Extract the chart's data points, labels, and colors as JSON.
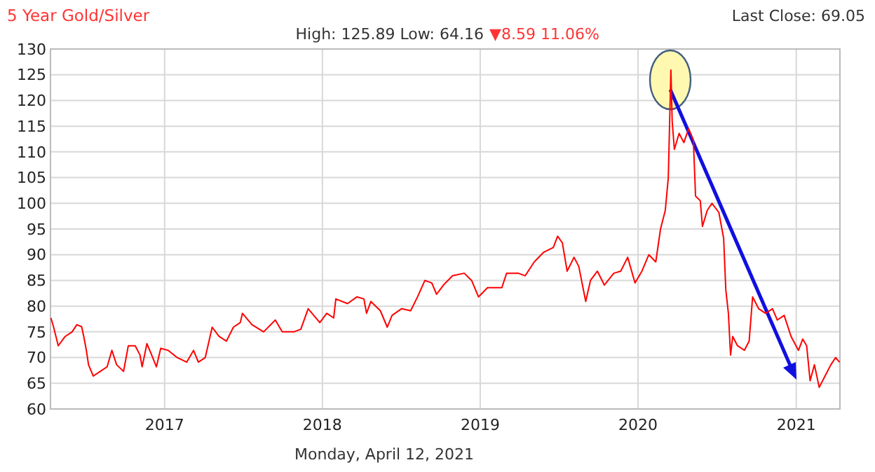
{
  "chart_data": {
    "type": "line",
    "title": "5 Year Gold/Silver",
    "subtitle": "High: 125.89 Low: 64.16",
    "annotations": [
      "▼8.59 11.06%",
      "Last Close: 69.05",
      "Monday, April 12, 2021"
    ],
    "xlim": [
      "2016-04-12",
      "2021-04-12"
    ],
    "xticks": [
      "2017",
      "2018",
      "2019",
      "2020",
      "2021"
    ],
    "ylim": [
      60,
      130
    ],
    "yticks": [
      60,
      65,
      70,
      75,
      80,
      85,
      90,
      95,
      100,
      105,
      110,
      115,
      120,
      125,
      130
    ],
    "grid": true,
    "marker": "none",
    "line_style": "solid",
    "series": [
      {
        "color": "#ff0000",
        "x": [
          "2016-04-13",
          "2016-04-19",
          "2016-04-30",
          "2016-05-16",
          "2016-06-01",
          "2016-06-12",
          "2016-06-23",
          "2016-06-28",
          "2016-07-04",
          "2016-07-09",
          "2016-07-20",
          "2016-08-05",
          "2016-08-21",
          "2016-09-01",
          "2016-09-12",
          "2016-09-28",
          "2016-10-09",
          "2016-10-25",
          "2016-11-05",
          "2016-11-10",
          "2016-11-21",
          "2016-12-02",
          "2016-12-13",
          "2016-12-23",
          "2017-01-09",
          "2017-01-30",
          "2017-02-21",
          "2017-03-09",
          "2017-03-20",
          "2017-04-05",
          "2017-04-21",
          "2017-05-07",
          "2017-05-24",
          "2017-06-09",
          "2017-06-25",
          "2017-06-30",
          "2017-07-22",
          "2017-08-18",
          "2017-09-14",
          "2017-09-30",
          "2017-10-27",
          "2017-11-12",
          "2017-11-29",
          "2017-12-26",
          "2018-01-11",
          "2018-01-27",
          "2018-02-01",
          "2018-02-28",
          "2018-03-22",
          "2018-04-07",
          "2018-04-13",
          "2018-04-23",
          "2018-05-15",
          "2018-05-31",
          "2018-06-11",
          "2018-07-03",
          "2018-07-24",
          "2018-08-09",
          "2018-08-26",
          "2018-09-11",
          "2018-09-22",
          "2018-10-08",
          "2018-10-29",
          "2018-11-25",
          "2018-12-12",
          "2018-12-28",
          "2019-01-18",
          "2019-02-20",
          "2019-03-03",
          "2019-03-30",
          "2019-04-15",
          "2019-05-06",
          "2019-05-28",
          "2019-06-19",
          "2019-06-29",
          "2019-07-10",
          "2019-07-21",
          "2019-08-06",
          "2019-08-17",
          "2019-09-02",
          "2019-09-13",
          "2019-09-29",
          "2019-10-15",
          "2019-11-06",
          "2019-11-22",
          "2019-12-08",
          "2019-12-25",
          "2020-01-10",
          "2020-01-26",
          "2020-02-11",
          "2020-02-22",
          "2020-03-04",
          "2020-03-11",
          "2020-03-17",
          "2020-03-20",
          "2020-03-25",
          "2020-04-05",
          "2020-04-16",
          "2020-04-27",
          "2020-05-08",
          "2020-05-13",
          "2020-05-24",
          "2020-05-29",
          "2020-06-09",
          "2020-06-20",
          "2020-07-06",
          "2020-07-17",
          "2020-07-22",
          "2020-07-28",
          "2020-08-02",
          "2020-08-07",
          "2020-08-18",
          "2020-09-03",
          "2020-09-14",
          "2020-09-22",
          "2020-10-06",
          "2020-10-22",
          "2020-11-07",
          "2020-11-18",
          "2020-12-04",
          "2020-12-20",
          "2021-01-06",
          "2021-01-16",
          "2021-01-25",
          "2021-02-02",
          "2021-02-12",
          "2021-02-23",
          "2021-03-11",
          "2021-03-22",
          "2021-04-02",
          "2021-04-11"
        ],
        "values": [
          77.7,
          76,
          72.3,
          74.1,
          75,
          76.4,
          76,
          74.1,
          71.4,
          68.6,
          66.4,
          67.3,
          68.2,
          71.4,
          68.6,
          67.3,
          72.3,
          72.3,
          70.5,
          68.2,
          72.7,
          70.5,
          68.2,
          71.8,
          71.4,
          70,
          69.1,
          71.4,
          69.1,
          70,
          75.9,
          74.1,
          73.2,
          75.9,
          76.8,
          78.6,
          76.4,
          75,
          77.3,
          75,
          75,
          75.5,
          79.5,
          76.8,
          78.6,
          77.7,
          81.4,
          80.5,
          81.8,
          81.4,
          78.6,
          80.9,
          79.1,
          75.9,
          78.2,
          79.5,
          79.1,
          81.8,
          85,
          84.5,
          82.3,
          84.1,
          85.9,
          86.4,
          85,
          81.8,
          83.6,
          83.6,
          86.4,
          86.4,
          85.9,
          88.6,
          90.5,
          91.4,
          93.6,
          92.3,
          86.8,
          89.5,
          87.7,
          80.9,
          85,
          86.8,
          84.1,
          86.4,
          86.8,
          89.5,
          84.5,
          86.8,
          90,
          88.6,
          95,
          98.6,
          105,
          125.9,
          115.9,
          110.5,
          113.6,
          111.8,
          114.5,
          112.3,
          101.4,
          100.5,
          95.5,
          98.6,
          100,
          98.2,
          93.2,
          83.2,
          78.6,
          70.5,
          74.1,
          72.3,
          71.4,
          73.2,
          81.8,
          79.5,
          78.6,
          79.5,
          77.3,
          78.2,
          74.1,
          71.4,
          73.6,
          72.3,
          65.5,
          68.6,
          64.2,
          66.8,
          68.6,
          70,
          69.1
        ]
      }
    ]
  }
}
